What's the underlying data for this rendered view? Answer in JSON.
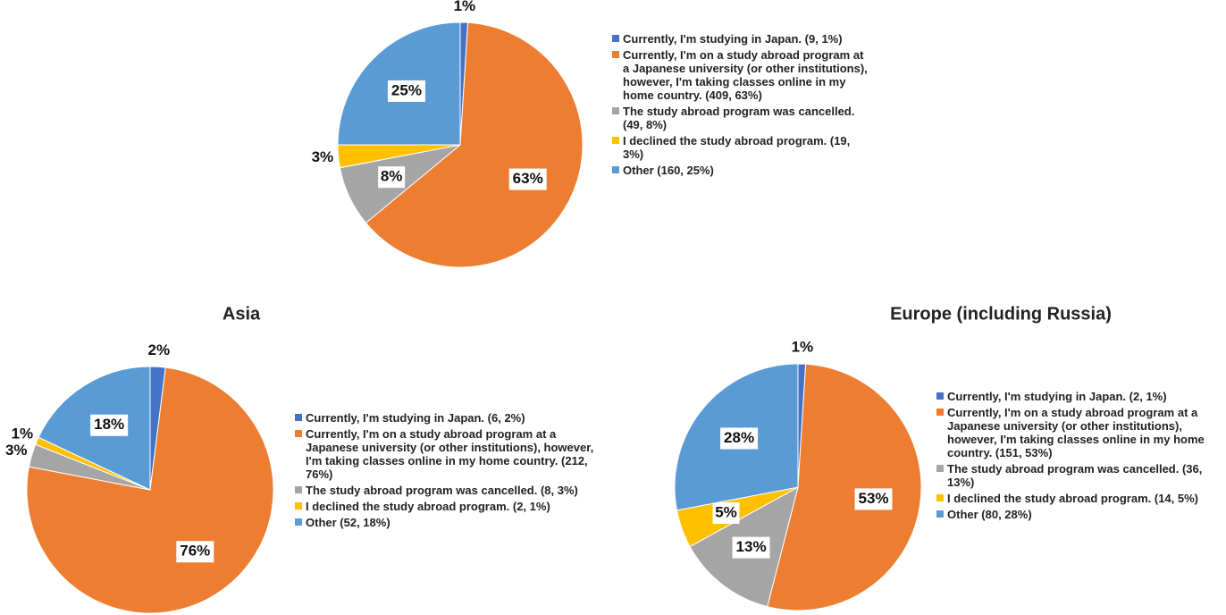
{
  "chart_data": [
    {
      "type": "pie",
      "categories": [
        "Currently, I'm studying in Japan. (9, 1%)",
        "Currently, I'm on a study abroad program at a Japanese university (or other institutions), however, I'm taking classes online in my home country. (409, 63%)",
        "The study abroad program was cancelled. (49, 8%)",
        "I declined the study abroad program. (19, 3%)",
        "Other (160, 25%)"
      ],
      "values": [
        1,
        63,
        8,
        3,
        25
      ],
      "value_labels": [
        "1%",
        "63%",
        "8%",
        "3%",
        "25%"
      ],
      "colors": [
        "#4472c4",
        "#ed7d31",
        "#a5a5a5",
        "#ffc000",
        "#5b9bd5"
      ]
    },
    {
      "type": "pie",
      "title": "Asia",
      "categories": [
        "Currently, I'm studying in Japan. (6, 2%)",
        "Currently, I'm on a study abroad program at a Japanese university (or other institutions), however, I'm taking classes online in my home country. (212, 76%)",
        "The study abroad program was cancelled. (8, 3%)",
        "I declined the study abroad program. (2, 1%)",
        "Other (52, 18%)"
      ],
      "values": [
        2,
        76,
        3,
        1,
        18
      ],
      "value_labels": [
        "2%",
        "76%",
        "3%",
        "1%",
        "18%"
      ],
      "colors": [
        "#4472c4",
        "#ed7d31",
        "#a5a5a5",
        "#ffc000",
        "#5b9bd5"
      ]
    },
    {
      "type": "pie",
      "title": "Europe (including Russia)",
      "categories": [
        "Currently, I'm studying in Japan. (2, 1%)",
        "Currently, I'm on a study abroad program at a Japanese university (or other institutions), however, I'm taking classes online in my home country. (151, 53%)",
        "The study abroad program was cancelled. (36, 13%)",
        "I declined the study abroad program. (14, 5%)",
        "Other (80, 28%)"
      ],
      "values": [
        1,
        53,
        13,
        5,
        28
      ],
      "value_labels": [
        "1%",
        "53%",
        "13%",
        "5%",
        "28%"
      ],
      "colors": [
        "#4472c4",
        "#ed7d31",
        "#a5a5a5",
        "#ffc000",
        "#5b9bd5"
      ]
    }
  ]
}
